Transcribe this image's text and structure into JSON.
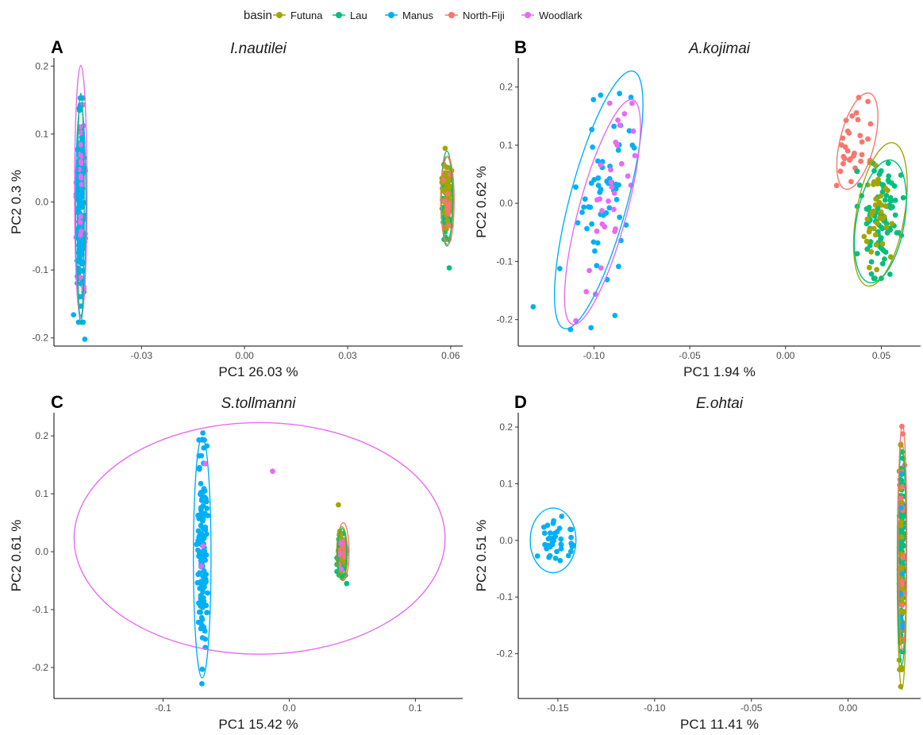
{
  "legend": {
    "title": "basin",
    "items": [
      {
        "label": "Futuna",
        "color": "#a3a500"
      },
      {
        "label": "Lau",
        "color": "#00bf7d"
      },
      {
        "label": "Manus",
        "color": "#00b0f6"
      },
      {
        "label": "North-Fiji",
        "color": "#f8766d"
      },
      {
        "label": "Woodlark",
        "color": "#e76bf3"
      }
    ]
  },
  "chart_data": [
    {
      "panel": "A",
      "title": "I.nautilei",
      "type": "scatter",
      "xlabel": "PC1 26.03 %",
      "ylabel": "PC2 0.3 %",
      "xlim": [
        -0.0555,
        0.0635
      ],
      "ylim": [
        -0.212,
        0.212
      ],
      "xticks": [
        {
          "v": -0.03,
          "t": "-0.03"
        },
        {
          "v": 0.0,
          "t": "0.00"
        },
        {
          "v": 0.03,
          "t": "0.03"
        },
        {
          "v": 0.06,
          "t": "0.06"
        }
      ],
      "yticks": [
        {
          "v": -0.2,
          "t": "-0.2"
        },
        {
          "v": -0.1,
          "t": "-0.1"
        },
        {
          "v": 0.0,
          "t": "0.0"
        },
        {
          "v": 0.1,
          "t": "0.1"
        },
        {
          "v": 0.2,
          "t": "0.2"
        }
      ],
      "ellipses": [
        {
          "basin": "Manus",
          "cx": -0.0477,
          "cy": -0.013,
          "rx": 0.0015,
          "ry": 0.155
        },
        {
          "basin": "Woodlark",
          "cx": -0.0477,
          "cy": 0.015,
          "rx": 0.0018,
          "ry": 0.186
        },
        {
          "basin": "Lau",
          "cx": -0.0477,
          "cy": -0.01,
          "rx": 0.001,
          "ry": 0.17
        },
        {
          "basin": "Futuna",
          "cx": 0.0589,
          "cy": 0.005,
          "rx": 0.0018,
          "ry": 0.062
        },
        {
          "basin": "Lau",
          "cx": 0.0589,
          "cy": 0.005,
          "rx": 0.0016,
          "ry": 0.07
        },
        {
          "basin": "North-Fiji",
          "cx": 0.0591,
          "cy": 0.002,
          "rx": 0.0019,
          "ry": 0.065
        }
      ],
      "clusters": [
        {
          "basin": "Manus",
          "n": 170,
          "cx": -0.0477,
          "cy": -0.012,
          "sx": 0.0006,
          "sy": 0.075
        },
        {
          "basin": "Woodlark",
          "n": 20,
          "cx": -0.0477,
          "cy": 0.01,
          "sx": 0.0006,
          "sy": 0.07
        },
        {
          "basin": "Lau",
          "n": 60,
          "cx": 0.0588,
          "cy": 0.0,
          "sx": 0.0007,
          "sy": 0.025
        },
        {
          "basin": "Futuna",
          "n": 55,
          "cx": 0.059,
          "cy": 0.005,
          "sx": 0.0007,
          "sy": 0.025
        },
        {
          "basin": "North-Fiji",
          "n": 10,
          "cx": 0.0592,
          "cy": 0.0,
          "sx": 0.0007,
          "sy": 0.02
        }
      ],
      "points": [
        {
          "basin": "Lau",
          "x": 0.0596,
          "y": -0.097
        },
        {
          "basin": "Futuna",
          "x": 0.0584,
          "y": 0.079
        },
        {
          "basin": "Manus",
          "x": -0.0465,
          "y": -0.202
        },
        {
          "basin": "Manus",
          "x": -0.0498,
          "y": -0.166
        },
        {
          "basin": "Woodlark",
          "x": -0.047,
          "y": 0.143
        }
      ]
    },
    {
      "panel": "B",
      "title": "A.kojimai",
      "type": "scatter",
      "xlabel": "PC1 1.94 %",
      "ylabel": "PC2 0.62 %",
      "xlim": [
        -0.1395,
        0.0705
      ],
      "ylim": [
        -0.2455,
        0.25
      ],
      "xticks": [
        {
          "v": -0.1,
          "t": "-0.10"
        },
        {
          "v": -0.05,
          "t": "-0.05"
        },
        {
          "v": 0.0,
          "t": "0.00"
        },
        {
          "v": 0.05,
          "t": "0.05"
        }
      ],
      "yticks": [
        {
          "v": -0.2,
          "t": "-0.2"
        },
        {
          "v": -0.1,
          "t": "-0.1"
        },
        {
          "v": 0.0,
          "t": "0.0"
        },
        {
          "v": 0.1,
          "t": "0.1"
        },
        {
          "v": 0.2,
          "t": "0.2"
        }
      ],
      "ellipses": [
        {
          "basin": "Manus",
          "cx": -0.0975,
          "cy": 0.006,
          "rx": 0.015,
          "ry": 0.229,
          "rot": 15
        },
        {
          "basin": "Woodlark",
          "cx": -0.0955,
          "cy": -0.015,
          "rx": 0.0125,
          "ry": 0.2,
          "rot": 15
        },
        {
          "basin": "North-Fiji",
          "cx": 0.0375,
          "cy": 0.107,
          "rx": 0.009,
          "ry": 0.085,
          "rot": 14
        },
        {
          "basin": "Futuna",
          "cx": 0.0495,
          "cy": -0.019,
          "rx": 0.0125,
          "ry": 0.125,
          "rot": 10
        },
        {
          "basin": "Lau",
          "cx": 0.0495,
          "cy": -0.031,
          "rx": 0.0125,
          "ry": 0.107,
          "rot": 10
        }
      ],
      "clusters": [
        {
          "basin": "Manus",
          "n": 55,
          "cx": -0.098,
          "cy": 0.005,
          "sx": 0.009,
          "sy": 0.09,
          "corr": 0.55
        },
        {
          "basin": "Woodlark",
          "n": 30,
          "cx": -0.094,
          "cy": -0.015,
          "sx": 0.007,
          "sy": 0.085,
          "corr": 0.55
        },
        {
          "basin": "North-Fiji",
          "n": 30,
          "cx": 0.036,
          "cy": 0.105,
          "sx": 0.005,
          "sy": 0.035,
          "corr": 0.3
        },
        {
          "basin": "Lau",
          "n": 90,
          "cx": 0.0495,
          "cy": -0.03,
          "sx": 0.0055,
          "sy": 0.045
        },
        {
          "basin": "Futuna",
          "n": 40,
          "cx": 0.049,
          "cy": -0.015,
          "sx": 0.005,
          "sy": 0.045
        }
      ],
      "points": [
        {
          "basin": "Manus",
          "x": -0.1317,
          "y": -0.178
        },
        {
          "basin": "Manus",
          "x": -0.1122,
          "y": -0.217
        },
        {
          "basin": "Manus",
          "x": -0.1015,
          "y": -0.214
        },
        {
          "basin": "Manus",
          "x": -0.0965,
          "y": 0.186
        },
        {
          "basin": "Woodlark",
          "x": -0.0875,
          "y": 0.143
        },
        {
          "basin": "Woodlark",
          "x": -0.104,
          "y": -0.152
        },
        {
          "basin": "North-Fiji",
          "x": 0.043,
          "y": 0.175
        },
        {
          "basin": "Lau",
          "x": 0.0545,
          "y": -0.122
        }
      ]
    },
    {
      "panel": "C",
      "title": "S.tollmanni",
      "type": "scatter",
      "xlabel": "PC1 15.42 %",
      "ylabel": "PC2 0.61 %",
      "xlim": [
        -0.1865,
        0.1375
      ],
      "ylim": [
        -0.2535,
        0.24
      ],
      "xticks": [
        {
          "v": -0.1,
          "t": "-0.1"
        },
        {
          "v": 0.0,
          "t": "0.0"
        },
        {
          "v": 0.1,
          "t": "0.1"
        }
      ],
      "yticks": [
        {
          "v": -0.2,
          "t": "-0.2"
        },
        {
          "v": -0.1,
          "t": "-0.1"
        },
        {
          "v": 0.0,
          "t": "0.0"
        },
        {
          "v": 0.1,
          "t": "0.1"
        },
        {
          "v": 0.2,
          "t": "0.2"
        }
      ],
      "ellipses": [
        {
          "basin": "Woodlark",
          "cx": -0.0235,
          "cy": 0.023,
          "rx": 0.147,
          "ry": 0.2
        },
        {
          "basin": "Manus",
          "cx": -0.069,
          "cy": -0.01,
          "rx": 0.007,
          "ry": 0.208
        },
        {
          "basin": "North-Fiji",
          "cx": 0.0428,
          "cy": 0.0,
          "rx": 0.0045,
          "ry": 0.05
        },
        {
          "basin": "Futuna",
          "cx": 0.0418,
          "cy": -0.003,
          "rx": 0.0042,
          "ry": 0.046
        },
        {
          "basin": "Lau",
          "cx": 0.0418,
          "cy": -0.003,
          "rx": 0.0036,
          "ry": 0.043
        }
      ],
      "clusters": [
        {
          "basin": "Manus",
          "n": 140,
          "cx": -0.069,
          "cy": -0.005,
          "sx": 0.002,
          "sy": 0.09
        },
        {
          "basin": "Lau",
          "n": 60,
          "cx": 0.0418,
          "cy": -0.005,
          "sx": 0.0018,
          "sy": 0.018
        },
        {
          "basin": "Futuna",
          "n": 25,
          "cx": 0.0418,
          "cy": 0.0,
          "sx": 0.0017,
          "sy": 0.016
        },
        {
          "basin": "North-Fiji",
          "n": 10,
          "cx": 0.0425,
          "cy": 0.0,
          "sx": 0.0015,
          "sy": 0.015
        }
      ],
      "points": [
        {
          "basin": "Woodlark",
          "x": -0.0132,
          "y": 0.139
        },
        {
          "basin": "Woodlark",
          "x": -0.0665,
          "y": 0.152
        },
        {
          "basin": "Woodlark",
          "x": -0.0685,
          "y": 0.01
        },
        {
          "basin": "Woodlark",
          "x": -0.0698,
          "y": -0.025
        },
        {
          "basin": "Woodlark",
          "x": 0.0405,
          "y": 0.015
        },
        {
          "basin": "Woodlark",
          "x": 0.0395,
          "y": -0.005
        },
        {
          "basin": "Woodlark",
          "x": 0.0412,
          "y": -0.03
        },
        {
          "basin": "Futuna",
          "x": 0.039,
          "y": 0.081
        },
        {
          "basin": "Manus",
          "x": -0.0692,
          "y": -0.228
        },
        {
          "basin": "Manus",
          "x": -0.0685,
          "y": 0.205
        },
        {
          "basin": "Lau",
          "x": 0.0455,
          "y": -0.055
        }
      ]
    },
    {
      "panel": "D",
      "title": "E.ohtai",
      "type": "scatter",
      "xlabel": "PC1 11.41 %",
      "ylabel": "PC2 0.51 %",
      "xlim": [
        -0.1705,
        0.0375
      ],
      "ylim": [
        -0.279,
        0.2252
      ],
      "xticks": [
        {
          "v": -0.15,
          "t": "-0.15"
        },
        {
          "v": -0.1,
          "t": "-0.10"
        },
        {
          "v": -0.05,
          "t": "-0.05"
        },
        {
          "v": 0.0,
          "t": "0.00"
        }
      ],
      "yticks": [
        {
          "v": -0.2,
          "t": "-0.2"
        },
        {
          "v": -0.1,
          "t": "-0.1"
        },
        {
          "v": 0.0,
          "t": "0.0"
        },
        {
          "v": 0.1,
          "t": "0.1"
        },
        {
          "v": 0.2,
          "t": "0.2"
        }
      ],
      "ellipses": [
        {
          "basin": "Manus",
          "cx": -0.1525,
          "cy": 0.0,
          "rx": 0.0118,
          "ry": 0.057
        },
        {
          "basin": "Futuna",
          "cx": 0.0278,
          "cy": -0.045,
          "rx": 0.0024,
          "ry": 0.218
        },
        {
          "basin": "Lau",
          "cx": 0.0278,
          "cy": -0.03,
          "rx": 0.0022,
          "ry": 0.19
        },
        {
          "basin": "North-Fiji",
          "cx": 0.0281,
          "cy": 0.005,
          "rx": 0.0022,
          "ry": 0.2
        }
      ],
      "clusters": [
        {
          "basin": "Manus",
          "n": 40,
          "cx": -0.152,
          "cy": 0.0,
          "sx": 0.0045,
          "sy": 0.02
        },
        {
          "basin": "Lau",
          "n": 170,
          "cx": 0.0278,
          "cy": -0.02,
          "sx": 0.0006,
          "sy": 0.08
        },
        {
          "basin": "Futuna",
          "n": 40,
          "cx": 0.0278,
          "cy": -0.03,
          "sx": 0.0006,
          "sy": 0.09
        },
        {
          "basin": "North-Fiji",
          "n": 15,
          "cx": 0.0282,
          "cy": 0.03,
          "sx": 0.0006,
          "sy": 0.08
        },
        {
          "basin": "Manus",
          "n": 8,
          "cx": 0.0278,
          "cy": 0.0,
          "sx": 0.0005,
          "sy": 0.07
        }
      ],
      "points": [
        {
          "basin": "Futuna",
          "x": 0.0272,
          "y": -0.258
        },
        {
          "basin": "North-Fiji",
          "x": 0.0283,
          "y": 0.188
        },
        {
          "basin": "Futuna",
          "x": 0.0272,
          "y": 0.168
        }
      ]
    }
  ]
}
